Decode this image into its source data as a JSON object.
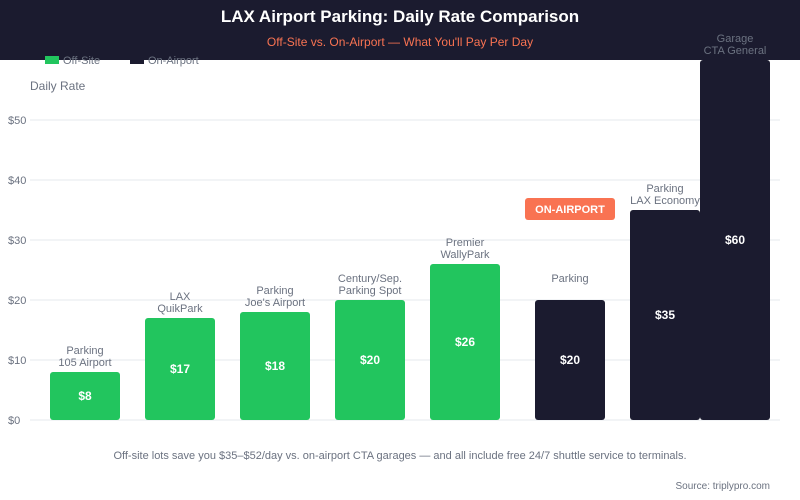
{
  "chart_data": {
    "type": "bar",
    "title": "LAX Airport Parking: Daily Rate Comparison",
    "subtitle": "Off-Site vs. On-Airport — What You'll Pay Per Day",
    "ylabel": "Daily Rate",
    "ylim": [
      0,
      60
    ],
    "yticks": [
      "$0",
      "$10",
      "$20",
      "$30",
      "$40",
      "$50"
    ],
    "ytick_values": [
      0,
      10,
      20,
      30,
      40,
      50
    ],
    "grid": true,
    "legend": {
      "placement": "top-left",
      "entries": [
        {
          "name": "Off-Site",
          "color": "#22c55e"
        },
        {
          "name": "On-Airport",
          "color": "#1b1b2f"
        }
      ]
    },
    "bars": [
      {
        "label": [
          "Parking",
          "105 Airport"
        ],
        "value": 8,
        "value_label": "$8",
        "group": "Off-Site"
      },
      {
        "label": [
          "LAX",
          "QuikPark"
        ],
        "value": 17,
        "value_label": "$17",
        "group": "Off-Site"
      },
      {
        "label": [
          "Parking",
          "Joe's Airport"
        ],
        "value": 18,
        "value_label": "$18",
        "group": "Off-Site"
      },
      {
        "label": [
          "Century/Sep.",
          "Parking Spot"
        ],
        "value": 20,
        "value_label": "$20",
        "group": "Off-Site"
      },
      {
        "label": [
          "Premier",
          "WallyPark"
        ],
        "value": 26,
        "value_label": "$26",
        "group": "Off-Site"
      },
      {
        "label": [
          "Parking",
          ""
        ],
        "value": 20,
        "value_label": "$20",
        "group": "On-Airport"
      },
      {
        "label": [
          "Parking",
          "LAX Economy"
        ],
        "value": 35,
        "value_label": "$35",
        "group": "On-Airport"
      },
      {
        "label": [
          "Garage",
          "CTA General"
        ],
        "value": 60,
        "value_label": "$60",
        "group": "On-Airport"
      }
    ],
    "annotation": "ON-AIRPORT",
    "footnote": "Off-site lots save you $35–$52/day vs. on-airport CTA garages — and all include free 24/7 shuttle service to terminals.",
    "source": "Source: triplypro.com"
  },
  "colors": {
    "header_bg": "#1b1b2f",
    "subtitle": "#f97352",
    "badge": "#f97352",
    "off_site": "#22c55e",
    "on_airport": "#1b1b2f"
  }
}
